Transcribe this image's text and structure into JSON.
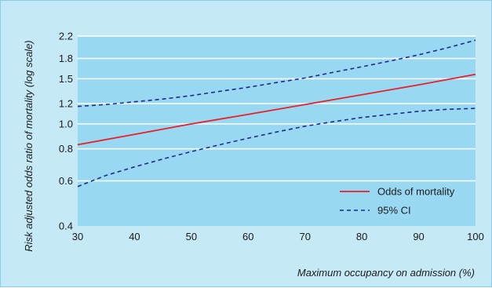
{
  "chart_data": {
    "type": "line",
    "title": "",
    "xlabel": "Maximum occupancy on admission (%)",
    "ylabel": "Risk adjusted odds ratio of mortality (log scale)",
    "yscale": "log",
    "xlim": [
      30,
      100
    ],
    "ylim": [
      0.4,
      2.2
    ],
    "x_ticks": [
      30,
      40,
      50,
      60,
      70,
      80,
      90,
      100
    ],
    "y_ticks": [
      0.4,
      0.6,
      0.8,
      1.0,
      1.2,
      1.5,
      1.8,
      2.2
    ],
    "y_tick_labels": [
      "0.4",
      "0.6",
      "0.8",
      "1.0",
      "1.2",
      "1.5",
      "1.8",
      "2.2"
    ],
    "grid": "horizontal",
    "legend_position": "bottom-right",
    "series": [
      {
        "name": "Odds of mortality",
        "style": "solid",
        "color": "#e8202a",
        "x": [
          30,
          40,
          50,
          60,
          70,
          80,
          90,
          100
        ],
        "y": [
          0.83,
          0.91,
          1.0,
          1.09,
          1.19,
          1.3,
          1.42,
          1.56
        ]
      },
      {
        "name": "95% CI",
        "style": "dashed",
        "color": "#1e2a8c",
        "x": [
          30,
          35,
          40,
          45,
          50,
          55,
          60,
          65,
          70,
          75,
          80,
          85,
          90,
          95,
          100
        ],
        "y": [
          1.17,
          1.19,
          1.22,
          1.25,
          1.29,
          1.34,
          1.39,
          1.45,
          1.51,
          1.59,
          1.67,
          1.76,
          1.86,
          1.98,
          2.12
        ]
      },
      {
        "name": "",
        "style": "dashed",
        "color": "#1e2a8c",
        "x": [
          30,
          35,
          40,
          45,
          50,
          55,
          60,
          65,
          70,
          75,
          80,
          85,
          90,
          95,
          100
        ],
        "y": [
          0.57,
          0.63,
          0.68,
          0.73,
          0.78,
          0.83,
          0.88,
          0.93,
          0.98,
          1.02,
          1.06,
          1.09,
          1.12,
          1.14,
          1.15
        ]
      }
    ],
    "legend": [
      {
        "label": "Odds of mortality",
        "style": "solid",
        "color": "#e8202a"
      },
      {
        "label": "95% CI",
        "style": "dashed",
        "color": "#1e2a8c"
      }
    ],
    "colors": {
      "plot_background": "#99d8f2",
      "figure_background": "#c6e9f7",
      "gridline": "#ffffff"
    }
  }
}
